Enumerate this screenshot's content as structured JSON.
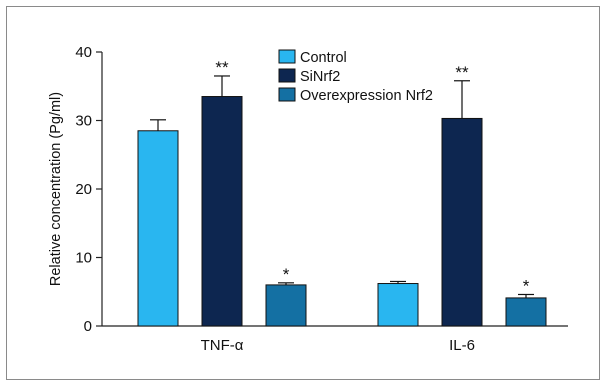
{
  "chart_data": {
    "type": "bar",
    "title": "",
    "xlabel": "",
    "ylabel": "Relative concentration (Pg/ml)",
    "ylim": [
      0,
      40
    ],
    "yticks": [
      "0",
      "10",
      "20",
      "30",
      "40"
    ],
    "categories": [
      "TNF-α",
      "IL-6"
    ],
    "series": [
      {
        "name": "Control",
        "values": [
          28.5,
          6.2
        ],
        "errors": [
          1.6,
          0.3
        ],
        "color": "#29b6f0",
        "sig": [
          "",
          ""
        ]
      },
      {
        "name": "SiNrf2",
        "values": [
          33.5,
          30.3
        ],
        "errors": [
          3.0,
          5.5
        ],
        "color": "#0d2650",
        "sig": [
          "**",
          "**"
        ]
      },
      {
        "name": "Overexpression Nrf2",
        "values": [
          6.0,
          4.1
        ],
        "errors": [
          0.3,
          0.5
        ],
        "color": "#1470a3",
        "sig": [
          "*",
          "*"
        ]
      }
    ],
    "grid": false,
    "legend_position": "top-center"
  }
}
